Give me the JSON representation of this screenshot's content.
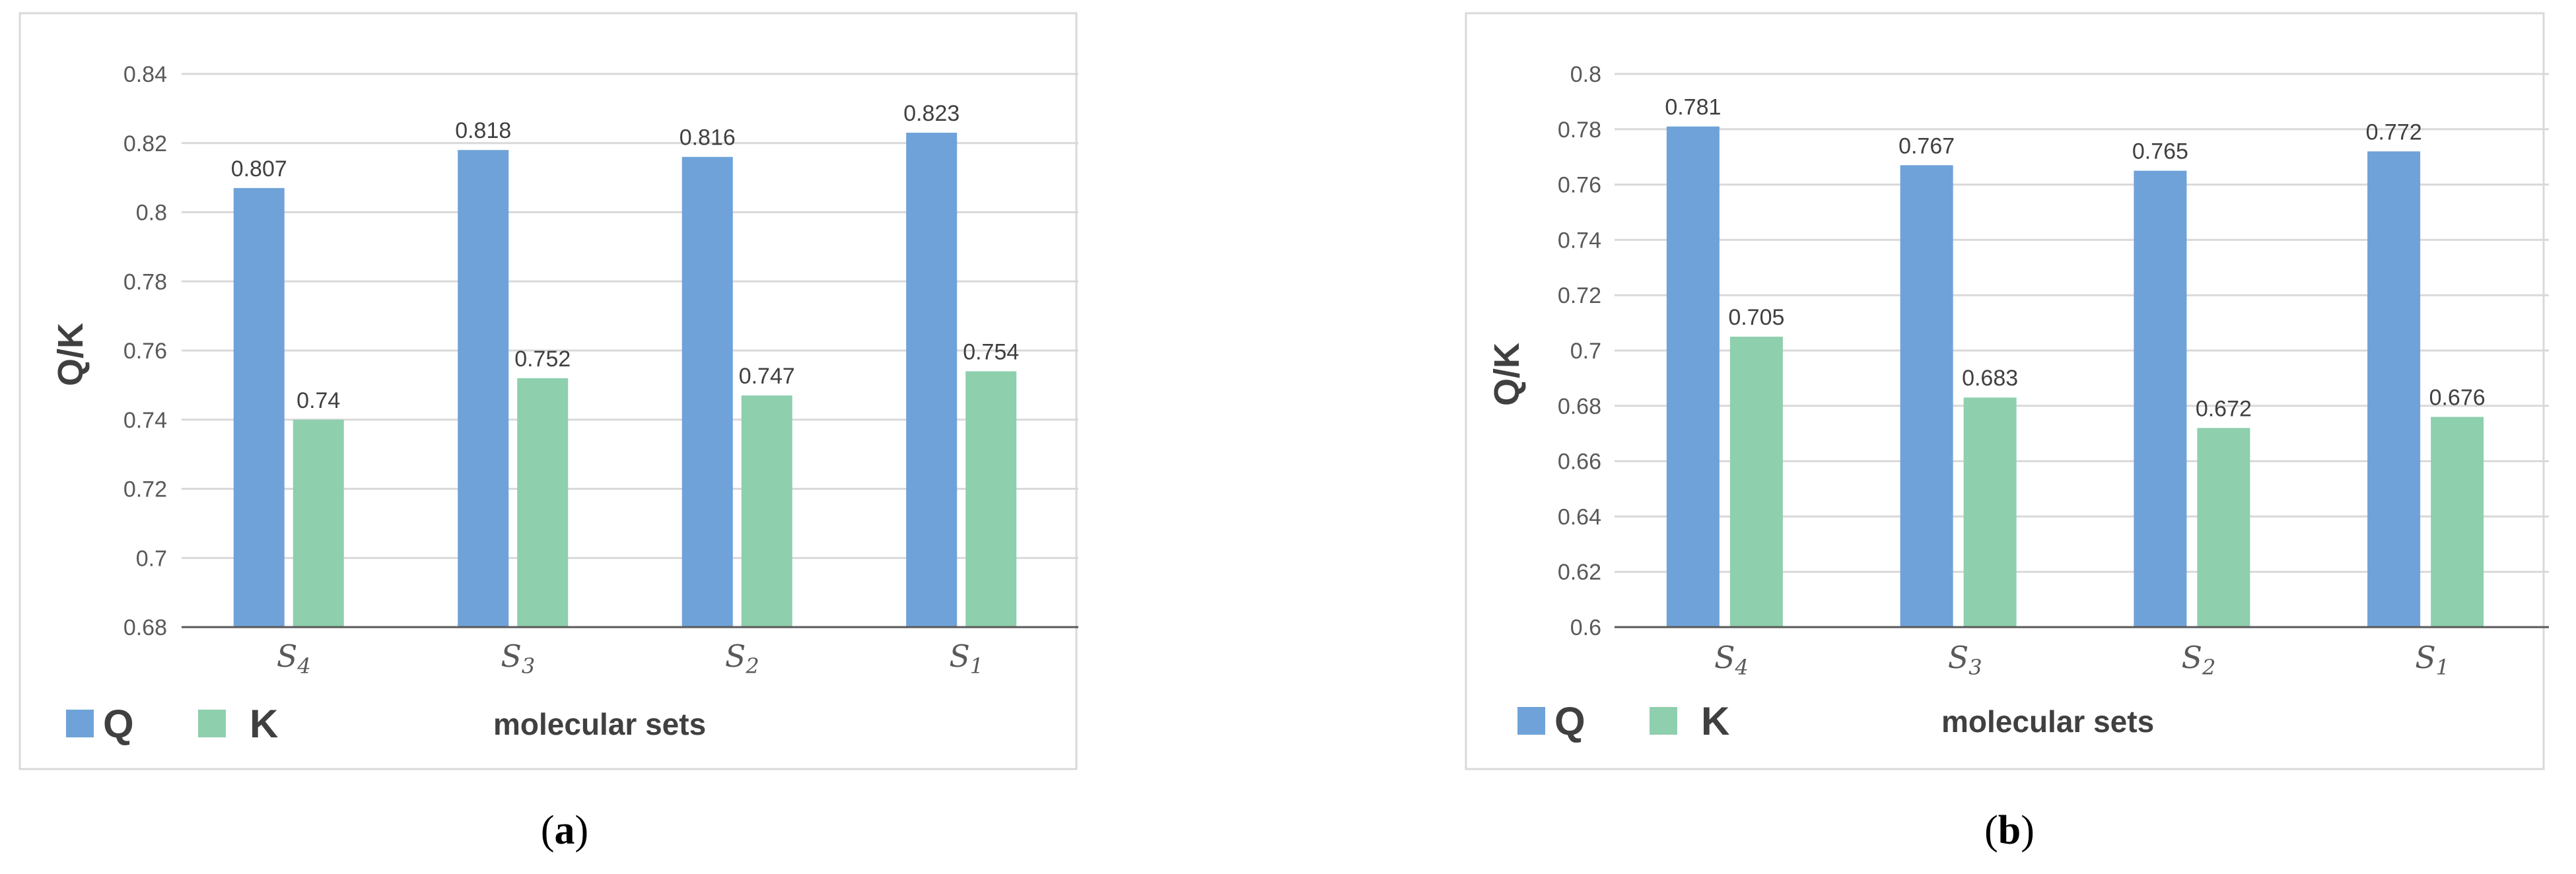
{
  "chart_data": [
    {
      "panel_label": "a",
      "type": "bar",
      "categories": [
        {
          "base": "S",
          "sub": "4"
        },
        {
          "base": "S",
          "sub": "3"
        },
        {
          "base": "S",
          "sub": "2"
        },
        {
          "base": "S",
          "sub": "1"
        }
      ],
      "series": [
        {
          "name": "Q",
          "color": "#6fa2d8",
          "values": [
            0.807,
            0.818,
            0.816,
            0.823
          ],
          "value_labels": [
            "0.807",
            "0.818",
            "0.816",
            "0.823"
          ]
        },
        {
          "name": "K",
          "color": "#8ecfae",
          "values": [
            0.74,
            0.752,
            0.747,
            0.754
          ],
          "value_labels": [
            "0.74",
            "0.752",
            "0.747",
            "0.754"
          ]
        }
      ],
      "ylabel": "Q/K",
      "xlabel": "molecular sets",
      "ylim": [
        0.68,
        0.84
      ],
      "ystep": 0.02,
      "yticks": [
        "0.68",
        "0.7",
        "0.72",
        "0.74",
        "0.76",
        "0.78",
        "0.8",
        "0.82",
        "0.84"
      ],
      "grid": true,
      "legend_position": "bottom-left"
    },
    {
      "panel_label": "b",
      "type": "bar",
      "categories": [
        {
          "base": "S",
          "sub": "4"
        },
        {
          "base": "S",
          "sub": "3"
        },
        {
          "base": "S",
          "sub": "2"
        },
        {
          "base": "S",
          "sub": "1"
        }
      ],
      "series": [
        {
          "name": "Q",
          "color": "#6fa2d8",
          "values": [
            0.781,
            0.767,
            0.765,
            0.772
          ],
          "value_labels": [
            "0.781",
            "0.767",
            "0.765",
            "0.772"
          ]
        },
        {
          "name": "K",
          "color": "#8ecfae",
          "values": [
            0.705,
            0.683,
            0.672,
            0.676
          ],
          "value_labels": [
            "0.705",
            "0.683",
            "0.672",
            "0.676"
          ]
        }
      ],
      "ylabel": "Q/K",
      "xlabel": "molecular sets",
      "ylim": [
        0.6,
        0.8
      ],
      "ystep": 0.02,
      "yticks": [
        "0.6",
        "0.62",
        "0.64",
        "0.66",
        "0.68",
        "0.7",
        "0.72",
        "0.74",
        "0.76",
        "0.78",
        "0.8"
      ],
      "grid": true,
      "legend_position": "bottom-left"
    }
  ]
}
